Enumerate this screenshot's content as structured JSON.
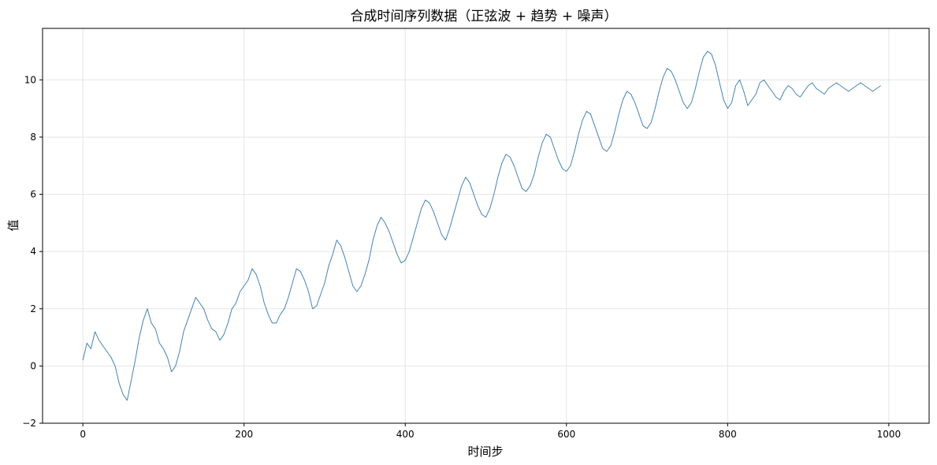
{
  "chart_data": {
    "type": "line",
    "title": "合成时间序列数据（正弦波 + 趋势 + 噪声）",
    "xlabel": "时间步",
    "ylabel": "值",
    "xlim": [
      -50,
      1050
    ],
    "ylim": [
      -2,
      11.8
    ],
    "x_ticks": [
      0,
      200,
      400,
      600,
      800,
      1000
    ],
    "y_ticks": [
      -2,
      0,
      2,
      4,
      6,
      8,
      10
    ],
    "grid": true,
    "legend": "none",
    "series": [
      {
        "color": "#4682b4",
        "x_start": 0,
        "x_step": 5,
        "values": [
          0.2,
          0.8,
          0.6,
          1.2,
          0.9,
          0.7,
          0.5,
          0.3,
          0.0,
          -0.6,
          -1.0,
          -1.2,
          -0.5,
          0.2,
          1.0,
          1.6,
          2.0,
          1.5,
          1.3,
          0.8,
          0.6,
          0.3,
          -0.2,
          0.0,
          0.5,
          1.2,
          1.6,
          2.0,
          2.4,
          2.2,
          2.0,
          1.6,
          1.3,
          1.2,
          0.9,
          1.1,
          1.5,
          2.0,
          2.2,
          2.6,
          2.8,
          3.0,
          3.4,
          3.2,
          2.8,
          2.2,
          1.8,
          1.5,
          1.5,
          1.8,
          2.0,
          2.4,
          2.9,
          3.4,
          3.3,
          3.0,
          2.6,
          2.0,
          2.1,
          2.5,
          2.9,
          3.5,
          3.9,
          4.4,
          4.2,
          3.8,
          3.3,
          2.8,
          2.6,
          2.8,
          3.2,
          3.7,
          4.4,
          4.9,
          5.2,
          5.0,
          4.7,
          4.3,
          3.9,
          3.6,
          3.7,
          4.0,
          4.5,
          5.0,
          5.5,
          5.8,
          5.7,
          5.4,
          5.0,
          4.6,
          4.4,
          4.8,
          5.3,
          5.8,
          6.3,
          6.6,
          6.4,
          6.0,
          5.6,
          5.3,
          5.2,
          5.5,
          6.0,
          6.6,
          7.1,
          7.4,
          7.3,
          7.0,
          6.6,
          6.2,
          6.1,
          6.3,
          6.7,
          7.3,
          7.8,
          8.1,
          8.0,
          7.6,
          7.2,
          6.9,
          6.8,
          7.0,
          7.5,
          8.1,
          8.6,
          8.9,
          8.8,
          8.4,
          8.0,
          7.6,
          7.5,
          7.7,
          8.2,
          8.8,
          9.3,
          9.6,
          9.5,
          9.2,
          8.8,
          8.4,
          8.3,
          8.5,
          9.0,
          9.6,
          10.1,
          10.4,
          10.3,
          10.0,
          9.6,
          9.2,
          9.0,
          9.2,
          9.7,
          10.3,
          10.8,
          11.0,
          10.9,
          10.5,
          9.9,
          9.3,
          9.0,
          9.2,
          9.8,
          10.0,
          9.6,
          9.1,
          9.3,
          9.5,
          9.9,
          10.0,
          9.8,
          9.6,
          9.4,
          9.3,
          9.6,
          9.8,
          9.7,
          9.5,
          9.4,
          9.6,
          9.8,
          9.9,
          9.7,
          9.6,
          9.5,
          9.7,
          9.8,
          9.9,
          9.8,
          9.7,
          9.6,
          9.7,
          9.8,
          9.9,
          9.8,
          9.7,
          9.6,
          9.7,
          9.8
        ]
      }
    ]
  }
}
